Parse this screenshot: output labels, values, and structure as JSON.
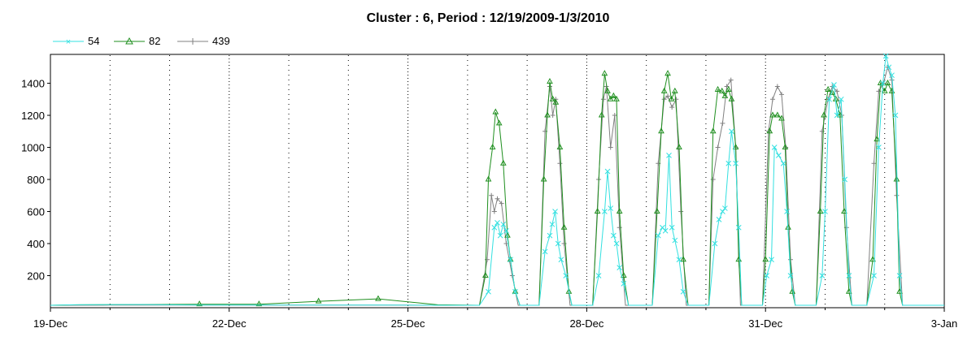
{
  "chart_data": {
    "type": "line",
    "title": "Cluster : 6, Period : 12/19/2009-1/3/2010",
    "xlabel": "",
    "ylabel": "",
    "ylim": [
      0,
      1580
    ],
    "x_ticks": [
      "19-Dec",
      "22-Dec",
      "25-Dec",
      "28-Dec",
      "31-Dec",
      "3-Jan"
    ],
    "y_ticks": [
      200,
      400,
      600,
      800,
      1000,
      1200,
      1400
    ],
    "grid": "vertical dotted",
    "legend_position": "top-left",
    "x_units": "days since 19-Dec",
    "series": [
      {
        "name": "54",
        "color": "#33e0e0",
        "marker": "x",
        "points": [
          [
            0,
            15
          ],
          [
            0.4,
            18
          ],
          [
            1.5,
            20
          ],
          [
            2.5,
            16
          ],
          [
            3.5,
            16
          ],
          [
            4.5,
            16
          ],
          [
            5.5,
            16
          ],
          [
            6.5,
            15
          ],
          [
            7.2,
            15
          ],
          [
            7.35,
            100
          ],
          [
            7.45,
            500
          ],
          [
            7.5,
            530
          ],
          [
            7.55,
            450
          ],
          [
            7.6,
            520
          ],
          [
            7.65,
            480
          ],
          [
            7.72,
            300
          ],
          [
            7.8,
            100
          ],
          [
            7.88,
            15
          ],
          [
            8.2,
            15
          ],
          [
            8.3,
            350
          ],
          [
            8.38,
            450
          ],
          [
            8.42,
            520
          ],
          [
            8.47,
            600
          ],
          [
            8.52,
            400
          ],
          [
            8.57,
            300
          ],
          [
            8.65,
            200
          ],
          [
            8.75,
            15
          ],
          [
            9.1,
            15
          ],
          [
            9.2,
            200
          ],
          [
            9.3,
            600
          ],
          [
            9.35,
            850
          ],
          [
            9.4,
            620
          ],
          [
            9.45,
            450
          ],
          [
            9.5,
            400
          ],
          [
            9.55,
            250
          ],
          [
            9.62,
            150
          ],
          [
            9.7,
            15
          ],
          [
            10.1,
            15
          ],
          [
            10.2,
            450
          ],
          [
            10.27,
            500
          ],
          [
            10.32,
            480
          ],
          [
            10.38,
            950
          ],
          [
            10.43,
            500
          ],
          [
            10.48,
            420
          ],
          [
            10.55,
            300
          ],
          [
            10.62,
            100
          ],
          [
            10.7,
            15
          ],
          [
            11.05,
            15
          ],
          [
            11.15,
            400
          ],
          [
            11.22,
            550
          ],
          [
            11.28,
            600
          ],
          [
            11.32,
            620
          ],
          [
            11.38,
            900
          ],
          [
            11.43,
            1100
          ],
          [
            11.5,
            900
          ],
          [
            11.55,
            500
          ],
          [
            11.6,
            15
          ],
          [
            11.95,
            15
          ],
          [
            12.02,
            200
          ],
          [
            12.1,
            300
          ],
          [
            12.15,
            1000
          ],
          [
            12.22,
            950
          ],
          [
            12.3,
            900
          ],
          [
            12.36,
            600
          ],
          [
            12.42,
            200
          ],
          [
            12.5,
            15
          ],
          [
            12.85,
            15
          ],
          [
            12.95,
            200
          ],
          [
            13.0,
            600
          ],
          [
            13.07,
            1300
          ],
          [
            13.15,
            1390
          ],
          [
            13.2,
            1200
          ],
          [
            13.27,
            1300
          ],
          [
            13.33,
            800
          ],
          [
            13.4,
            200
          ],
          [
            13.45,
            15
          ],
          [
            13.7,
            15
          ],
          [
            13.82,
            200
          ],
          [
            13.9,
            1000
          ],
          [
            13.97,
            1400
          ],
          [
            14.02,
            1570
          ],
          [
            14.07,
            1500
          ],
          [
            14.12,
            1450
          ],
          [
            14.18,
            1200
          ],
          [
            14.25,
            200
          ],
          [
            14.3,
            15
          ],
          [
            15,
            15
          ]
        ]
      },
      {
        "name": "82",
        "color": "#1f8f1f",
        "marker": "triangle",
        "points": [
          [
            0,
            15
          ],
          [
            0.5,
            18
          ],
          [
            1.5,
            20
          ],
          [
            2.5,
            22
          ],
          [
            3.5,
            22
          ],
          [
            4.5,
            40
          ],
          [
            5.5,
            55
          ],
          [
            6.5,
            18
          ],
          [
            7.2,
            15
          ],
          [
            7.3,
            200
          ],
          [
            7.35,
            800
          ],
          [
            7.42,
            1000
          ],
          [
            7.47,
            1220
          ],
          [
            7.53,
            1150
          ],
          [
            7.6,
            900
          ],
          [
            7.67,
            450
          ],
          [
            7.72,
            300
          ],
          [
            7.8,
            100
          ],
          [
            7.88,
            15
          ],
          [
            8.2,
            15
          ],
          [
            8.28,
            800
          ],
          [
            8.34,
            1200
          ],
          [
            8.38,
            1410
          ],
          [
            8.43,
            1300
          ],
          [
            8.48,
            1280
          ],
          [
            8.55,
            1000
          ],
          [
            8.62,
            500
          ],
          [
            8.7,
            100
          ],
          [
            8.75,
            15
          ],
          [
            9.1,
            15
          ],
          [
            9.18,
            600
          ],
          [
            9.25,
            1200
          ],
          [
            9.3,
            1460
          ],
          [
            9.35,
            1350
          ],
          [
            9.4,
            1300
          ],
          [
            9.45,
            1320
          ],
          [
            9.5,
            1300
          ],
          [
            9.55,
            600
          ],
          [
            9.62,
            200
          ],
          [
            9.7,
            15
          ],
          [
            10.1,
            15
          ],
          [
            10.18,
            600
          ],
          [
            10.25,
            1100
          ],
          [
            10.3,
            1350
          ],
          [
            10.36,
            1460
          ],
          [
            10.42,
            1300
          ],
          [
            10.48,
            1350
          ],
          [
            10.55,
            1000
          ],
          [
            10.62,
            300
          ],
          [
            10.7,
            15
          ],
          [
            11.05,
            15
          ],
          [
            11.12,
            1100
          ],
          [
            11.2,
            1360
          ],
          [
            11.27,
            1350
          ],
          [
            11.32,
            1320
          ],
          [
            11.38,
            1360
          ],
          [
            11.43,
            1300
          ],
          [
            11.5,
            1000
          ],
          [
            11.55,
            300
          ],
          [
            11.6,
            15
          ],
          [
            11.95,
            15
          ],
          [
            12.0,
            300
          ],
          [
            12.07,
            1100
          ],
          [
            12.12,
            1200
          ],
          [
            12.2,
            1200
          ],
          [
            12.27,
            1180
          ],
          [
            12.33,
            1000
          ],
          [
            12.38,
            500
          ],
          [
            12.45,
            100
          ],
          [
            12.5,
            15
          ],
          [
            12.85,
            15
          ],
          [
            12.92,
            600
          ],
          [
            12.98,
            1200
          ],
          [
            13.05,
            1360
          ],
          [
            13.12,
            1340
          ],
          [
            13.18,
            1300
          ],
          [
            13.25,
            1200
          ],
          [
            13.32,
            600
          ],
          [
            13.4,
            100
          ],
          [
            13.45,
            15
          ],
          [
            13.7,
            15
          ],
          [
            13.8,
            300
          ],
          [
            13.87,
            1050
          ],
          [
            13.93,
            1400
          ],
          [
            14.0,
            1350
          ],
          [
            14.05,
            1400
          ],
          [
            14.12,
            1350
          ],
          [
            14.2,
            800
          ],
          [
            14.25,
            100
          ],
          [
            14.3,
            15
          ],
          [
            15,
            15
          ]
        ]
      },
      {
        "name": "439",
        "color": "#808080",
        "marker": "plus",
        "points": [
          [
            0,
            15
          ],
          [
            1,
            16
          ],
          [
            2,
            16
          ],
          [
            3,
            16
          ],
          [
            4,
            16
          ],
          [
            5,
            16
          ],
          [
            6,
            16
          ],
          [
            7.2,
            15
          ],
          [
            7.33,
            300
          ],
          [
            7.4,
            700
          ],
          [
            7.45,
            600
          ],
          [
            7.5,
            680
          ],
          [
            7.57,
            650
          ],
          [
            7.65,
            400
          ],
          [
            7.75,
            200
          ],
          [
            7.85,
            15
          ],
          [
            8.2,
            15
          ],
          [
            8.3,
            1100
          ],
          [
            8.38,
            1380
          ],
          [
            8.43,
            1200
          ],
          [
            8.48,
            1300
          ],
          [
            8.55,
            900
          ],
          [
            8.62,
            400
          ],
          [
            8.72,
            15
          ],
          [
            9.1,
            15
          ],
          [
            9.2,
            800
          ],
          [
            9.28,
            1300
          ],
          [
            9.33,
            1380
          ],
          [
            9.4,
            1000
          ],
          [
            9.47,
            1200
          ],
          [
            9.55,
            500
          ],
          [
            9.65,
            15
          ],
          [
            10.1,
            15
          ],
          [
            10.2,
            900
          ],
          [
            10.3,
            1300
          ],
          [
            10.36,
            1320
          ],
          [
            10.43,
            1250
          ],
          [
            10.5,
            1300
          ],
          [
            10.58,
            600
          ],
          [
            10.67,
            15
          ],
          [
            11.05,
            15
          ],
          [
            11.12,
            800
          ],
          [
            11.2,
            1000
          ],
          [
            11.28,
            1150
          ],
          [
            11.35,
            1380
          ],
          [
            11.42,
            1420
          ],
          [
            11.5,
            1000
          ],
          [
            11.58,
            15
          ],
          [
            11.95,
            15
          ],
          [
            12.05,
            1100
          ],
          [
            12.12,
            1300
          ],
          [
            12.2,
            1380
          ],
          [
            12.27,
            1330
          ],
          [
            12.34,
            1000
          ],
          [
            12.42,
            300
          ],
          [
            12.5,
            15
          ],
          [
            12.85,
            15
          ],
          [
            12.95,
            1100
          ],
          [
            13.05,
            1300
          ],
          [
            13.12,
            1380
          ],
          [
            13.2,
            1350
          ],
          [
            13.28,
            1200
          ],
          [
            13.36,
            500
          ],
          [
            13.45,
            15
          ],
          [
            13.7,
            15
          ],
          [
            13.82,
            900
          ],
          [
            13.9,
            1350
          ],
          [
            13.98,
            1400
          ],
          [
            14.05,
            1500
          ],
          [
            14.12,
            1420
          ],
          [
            14.2,
            700
          ],
          [
            14.3,
            15
          ],
          [
            15,
            15
          ]
        ]
      }
    ]
  }
}
